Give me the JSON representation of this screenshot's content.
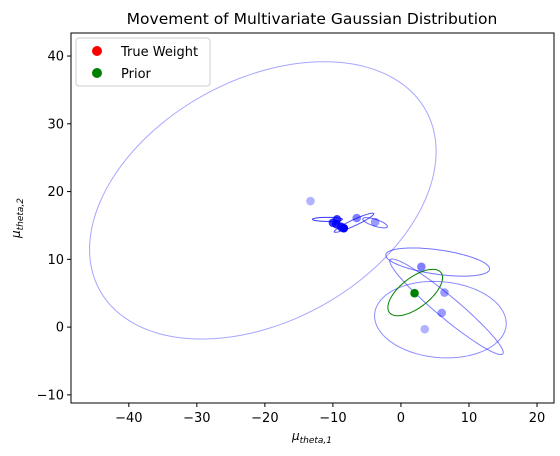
{
  "chart_data": {
    "type": "scatter",
    "title": "Movement of Multivariate Gaussian Distribution",
    "xlabel": {
      "base": "μ",
      "sub": "theta,1"
    },
    "ylabel": {
      "base": "μ",
      "sub": "theta,2"
    },
    "xlim": [
      -48.5,
      22.5
    ],
    "ylim": [
      -11.2,
      43.4
    ],
    "xticks": [
      -40,
      -30,
      -20,
      -10,
      0,
      10,
      20
    ],
    "yticks": [
      -10,
      0,
      10,
      20,
      30,
      40
    ],
    "grid": false,
    "legend_position": "top-left",
    "legend": [
      {
        "label": "True Weight",
        "color": "#ff0000"
      },
      {
        "label": "Prior",
        "color": "#008000"
      }
    ],
    "colors": {
      "posterior": "#0000ff",
      "true_weight": "#ff0000",
      "prior": "#008000"
    },
    "ellipses": [
      {
        "name": "large posterior ellipse",
        "cx": -20.3,
        "cy": 18.7,
        "rx": 27.4,
        "ry": 17.8,
        "angle_deg": 29,
        "color": "#0000ff",
        "alpha": 0.35
      },
      {
        "name": "lower posterior ellipse",
        "cx": 5.8,
        "cy": 1.1,
        "rx": 9.7,
        "ry": 5.6,
        "angle_deg": -5,
        "color": "#0000ff",
        "alpha": 0.45
      },
      {
        "name": "diagonal posterior ellipse",
        "cx": 6.7,
        "cy": 3.0,
        "rx": 10.8,
        "ry": 1.6,
        "angle_deg": -40,
        "color": "#0000ff",
        "alpha": 0.5
      },
      {
        "name": "middle posterior ellipse",
        "cx": 5.4,
        "cy": 9.6,
        "rx": 7.7,
        "ry": 1.8,
        "angle_deg": -8,
        "color": "#0000ff",
        "alpha": 0.55
      },
      {
        "name": "prior ellipse",
        "cx": 2.1,
        "cy": 5.1,
        "rx": 4.8,
        "ry": 2.2,
        "angle_deg": 38,
        "color": "#008000",
        "alpha": 1.0
      },
      {
        "name": "small posterior ellipse",
        "cx": -3.8,
        "cy": 15.4,
        "rx": 1.9,
        "ry": 0.5,
        "angle_deg": -18,
        "color": "#0000ff",
        "alpha": 0.6
      },
      {
        "name": "small posterior ellipse",
        "cx": -6.9,
        "cy": 15.4,
        "rx": 3.2,
        "ry": 0.45,
        "angle_deg": 25,
        "color": "#0000ff",
        "alpha": 0.7
      },
      {
        "name": "small posterior ellipse",
        "cx": -10.8,
        "cy": 15.9,
        "rx": 2.2,
        "ry": 0.3,
        "angle_deg": 0,
        "color": "#0000ff",
        "alpha": 0.8
      }
    ],
    "points": [
      {
        "x": -13.3,
        "y": 18.6,
        "color": "#0000ff",
        "alpha": 0.3
      },
      {
        "x": -6.5,
        "y": 16.1,
        "color": "#0000ff",
        "alpha": 0.5
      },
      {
        "x": -3.8,
        "y": 15.5,
        "color": "#0000ff",
        "alpha": 0.4
      },
      {
        "x": -9.4,
        "y": 15.9,
        "color": "#0000ff",
        "alpha": 0.8
      },
      {
        "x": -10.0,
        "y": 15.4,
        "color": "#0000ff",
        "alpha": 0.8
      },
      {
        "x": -9.5,
        "y": 15.2,
        "color": "#0000ff",
        "alpha": 0.85
      },
      {
        "x": -8.8,
        "y": 14.8,
        "color": "#0000ff",
        "alpha": 0.9
      },
      {
        "x": -8.4,
        "y": 14.6,
        "color": "#0000ff",
        "alpha": 1.0
      },
      {
        "x": 3.0,
        "y": 8.9,
        "color": "#0000ff",
        "alpha": 0.5
      },
      {
        "x": 6.4,
        "y": 5.1,
        "color": "#0000ff",
        "alpha": 0.4
      },
      {
        "x": 6.0,
        "y": 2.1,
        "color": "#0000ff",
        "alpha": 0.4
      },
      {
        "x": 3.5,
        "y": -0.3,
        "color": "#0000ff",
        "alpha": 0.3
      },
      {
        "x": 2.0,
        "y": 5.0,
        "color": "#008000",
        "alpha": 1.0
      }
    ]
  }
}
